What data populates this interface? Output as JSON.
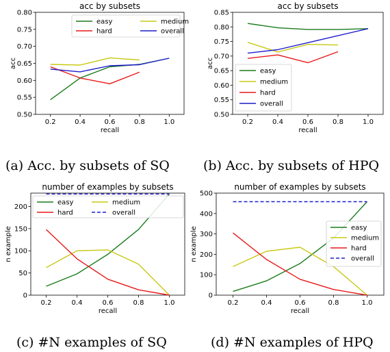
{
  "chart_data": [
    {
      "type": "line",
      "title": "acc by subsets",
      "xlabel": "recall",
      "ylabel": "acc",
      "x": [
        0.2,
        0.4,
        0.6,
        0.8,
        1.0
      ],
      "xticks": [
        "0.2",
        "0.4",
        "0.6",
        "0.8",
        "1.0"
      ],
      "xlim": [
        0.1,
        1.1
      ],
      "ylim": [
        0.5,
        0.8
      ],
      "yticks": [
        "0.50",
        "0.55",
        "0.60",
        "0.65",
        "0.70",
        "0.75",
        "0.80"
      ],
      "legend": "top-right, 2 columns",
      "caption": "(a) Acc. by subsets of SQ",
      "series": [
        {
          "name": "easy",
          "color": "#1a7a1a",
          "dash": false,
          "values": [
            0.543,
            0.607,
            0.64,
            0.647,
            0.665
          ]
        },
        {
          "name": "medium",
          "color": "#c8c814",
          "dash": false,
          "values": [
            0.647,
            0.645,
            0.666,
            0.66,
            null
          ]
        },
        {
          "name": "hard",
          "color": "#e81818",
          "dash": false,
          "values": [
            0.64,
            0.607,
            0.59,
            0.624,
            null
          ]
        },
        {
          "name": "overall",
          "color": "#1c1ccc",
          "dash": false,
          "values": [
            0.633,
            0.625,
            0.643,
            0.646,
            0.665
          ]
        }
      ]
    },
    {
      "type": "line",
      "title": "acc by subsets",
      "xlabel": "recall",
      "ylabel": "acc",
      "x": [
        0.2,
        0.4,
        0.6,
        0.8,
        1.0
      ],
      "xticks": [
        "0.2",
        "0.4",
        "0.6",
        "0.8",
        "1.0"
      ],
      "xlim": [
        0.1,
        1.1
      ],
      "ylim": [
        0.5,
        0.85
      ],
      "yticks": [
        "0.50",
        "0.55",
        "0.60",
        "0.65",
        "0.70",
        "0.75",
        "0.80",
        "0.85"
      ],
      "legend": "bottom-left",
      "caption": "(b) Acc. by subsets of HPQ",
      "series": [
        {
          "name": "easy",
          "color": "#1a7a1a",
          "dash": false,
          "values": [
            0.812,
            0.797,
            0.791,
            0.791,
            0.794
          ]
        },
        {
          "name": "medium",
          "color": "#c8c814",
          "dash": false,
          "values": [
            0.747,
            0.714,
            0.74,
            0.738,
            null
          ]
        },
        {
          "name": "hard",
          "color": "#e81818",
          "dash": false,
          "values": [
            0.692,
            0.704,
            0.677,
            0.715,
            null
          ]
        },
        {
          "name": "overall",
          "color": "#1c1ccc",
          "dash": false,
          "values": [
            0.71,
            0.722,
            0.746,
            0.77,
            0.794
          ]
        }
      ]
    },
    {
      "type": "line",
      "title": "number of examples by subsets",
      "xlabel": "recall",
      "ylabel": "n example",
      "x": [
        0.2,
        0.4,
        0.6,
        0.8,
        1.0
      ],
      "xticks": [
        "0.2",
        "0.4",
        "0.6",
        "0.8",
        "1.0"
      ],
      "xlim": [
        0.1,
        1.1
      ],
      "ylim": [
        0,
        230
      ],
      "yticks": [
        "0",
        "50",
        "100",
        "150",
        "200"
      ],
      "legend": "top, 2 columns",
      "caption": "(c) #N examples of SQ",
      "series": [
        {
          "name": "easy",
          "color": "#1a7a1a",
          "dash": false,
          "values": [
            20,
            48,
            92,
            148,
            228
          ]
        },
        {
          "name": "medium",
          "color": "#c8c814",
          "dash": false,
          "values": [
            62,
            100,
            102,
            70,
            0
          ]
        },
        {
          "name": "hard",
          "color": "#e81818",
          "dash": false,
          "values": [
            148,
            82,
            36,
            12,
            0
          ]
        },
        {
          "name": "overall",
          "color": "#1c1ccc",
          "dash": true,
          "values": [
            228,
            228,
            228,
            228,
            228
          ]
        }
      ]
    },
    {
      "type": "line",
      "title": "number of examples by subsets",
      "xlabel": "recall",
      "ylabel": "n example",
      "x": [
        0.2,
        0.4,
        0.6,
        0.8,
        1.0
      ],
      "xticks": [
        "0.2",
        "0.4",
        "0.6",
        "0.8",
        "1.0"
      ],
      "xlim": [
        0.1,
        1.1
      ],
      "ylim": [
        0,
        500
      ],
      "yticks": [
        "0",
        "100",
        "200",
        "300",
        "400",
        "500"
      ],
      "legend": "center-right",
      "caption": "(d) #N examples of HPQ",
      "series": [
        {
          "name": "easy",
          "color": "#1a7a1a",
          "dash": false,
          "values": [
            18,
            70,
            155,
            280,
            458
          ]
        },
        {
          "name": "medium",
          "color": "#c8c814",
          "dash": false,
          "values": [
            140,
            215,
            235,
            140,
            0
          ]
        },
        {
          "name": "hard",
          "color": "#e81818",
          "dash": false,
          "values": [
            305,
            175,
            78,
            28,
            0
          ]
        },
        {
          "name": "overall",
          "color": "#1c1ccc",
          "dash": true,
          "values": [
            458,
            458,
            458,
            458,
            458
          ]
        }
      ]
    }
  ]
}
